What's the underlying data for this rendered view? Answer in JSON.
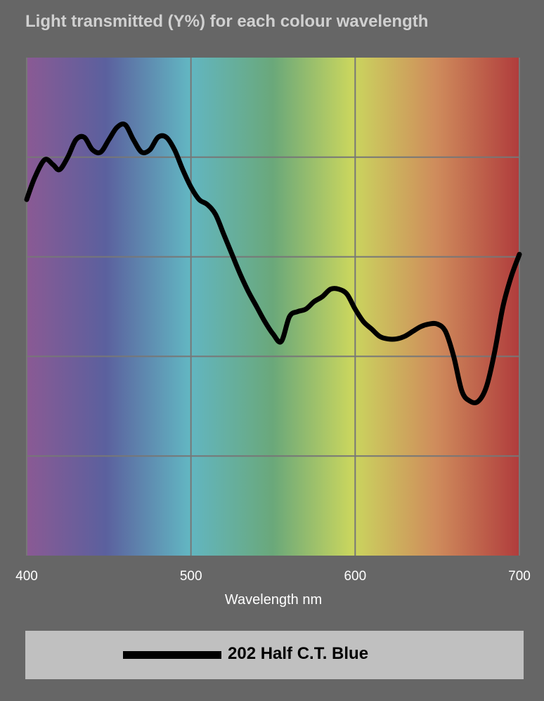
{
  "chart_data": {
    "type": "line",
    "title": "Light transmitted (Y%) for each colour wavelength",
    "xlabel": "Wavelength nm",
    "ylabel": "",
    "xlim": [
      400,
      700
    ],
    "ylim": [
      0,
      100
    ],
    "x_ticks": [
      400,
      500,
      600,
      700
    ],
    "y_gridlines": [
      20,
      40,
      60,
      80
    ],
    "grid": true,
    "legend_position": "bottom",
    "background": "visible-spectrum gradient",
    "series": [
      {
        "name": "202 Half C.T. Blue",
        "color": "#000000",
        "x": [
          400,
          405,
          411,
          416,
          420,
          425,
          430,
          435,
          440,
          445,
          450,
          455,
          460,
          465,
          470,
          475,
          480,
          485,
          490,
          495,
          500,
          505,
          510,
          515,
          520,
          525,
          530,
          535,
          540,
          545,
          550,
          555,
          560,
          565,
          570,
          575,
          580,
          585,
          590,
          595,
          600,
          605,
          610,
          615,
          620,
          625,
          630,
          635,
          640,
          645,
          650,
          655,
          660,
          665,
          670,
          675,
          680,
          685,
          690,
          695,
          700
        ],
        "y": [
          71.5,
          76,
          79.5,
          78.5,
          77.5,
          80,
          83.5,
          84,
          81.5,
          81,
          83.5,
          86,
          86.5,
          83.5,
          81,
          81.5,
          84,
          84,
          81.5,
          77.5,
          74,
          71.5,
          70.5,
          68.5,
          64.5,
          60.5,
          56.5,
          53,
          50,
          47,
          44.5,
          43,
          48,
          49,
          49.5,
          51,
          52,
          53.5,
          53.5,
          52.5,
          49.5,
          47,
          45.5,
          44,
          43.5,
          43.5,
          44,
          45,
          46,
          46.5,
          46.5,
          45,
          40,
          33,
          31,
          31,
          34,
          41,
          50,
          56,
          60.5
        ]
      }
    ]
  }
}
